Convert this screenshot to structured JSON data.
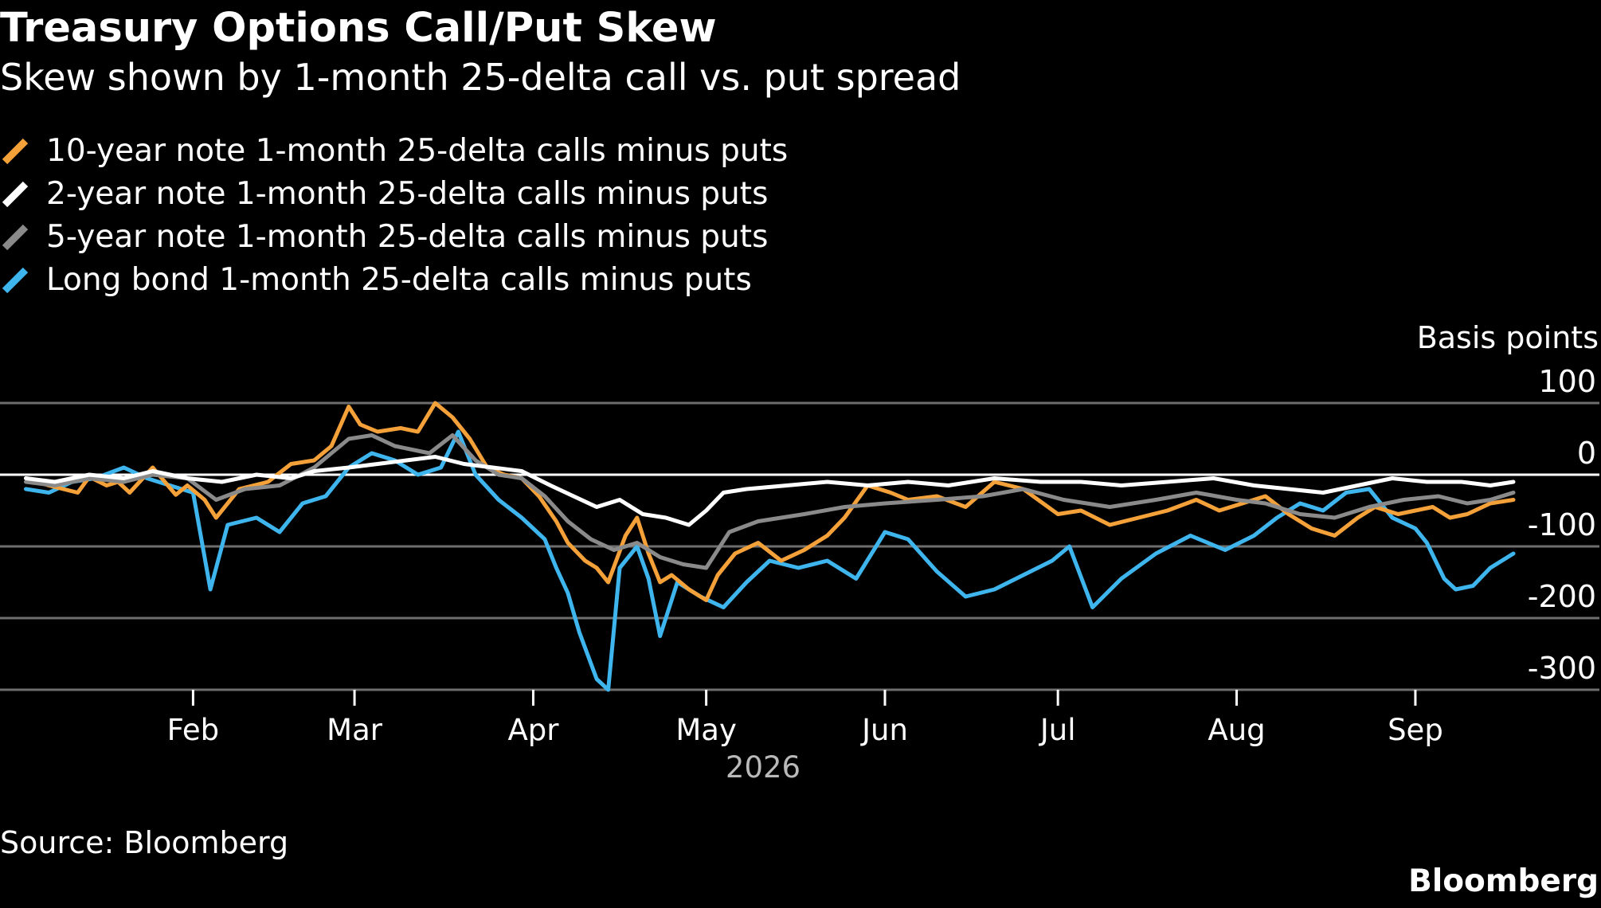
{
  "title": "Treasury Options Call/Put Skew",
  "subtitle": "Skew shown by 1-month 25-delta call vs. put spread",
  "unit_label": "Basis points",
  "source": "Source: Bloomberg",
  "brand": "Bloomberg",
  "colors": {
    "background": "#000000",
    "grid": "#6e6e6e",
    "zero_line": "#ffffff",
    "text": "#ffffff",
    "year_text": "#b9b9b9"
  },
  "chart_data": {
    "type": "line",
    "title": "Treasury Options Call/Put Skew",
    "subtitle": "Skew shown by 1-month 25-delta call vs. put spread",
    "ylabel": "Basis points",
    "ylim": [
      -300,
      100
    ],
    "yticks": [
      100,
      0,
      -100,
      -200,
      -300
    ],
    "ytick_labels": [
      "100",
      "0",
      "-100",
      "-200",
      "-300"
    ],
    "xlim": [
      "2026-01-01",
      "2026-09-18"
    ],
    "xticks": [
      {
        "date": "2026-02-01",
        "label": "Feb"
      },
      {
        "date": "2026-03-01",
        "label": "Mar"
      },
      {
        "date": "2026-04-01",
        "label": "Apr"
      },
      {
        "date": "2026-05-01",
        "label": "May"
      },
      {
        "date": "2026-06-01",
        "label": "Jun"
      },
      {
        "date": "2026-07-01",
        "label": "Jul"
      },
      {
        "date": "2026-08-01",
        "label": "Aug"
      },
      {
        "date": "2026-09-01",
        "label": "Sep"
      }
    ],
    "year_label": "2026",
    "grid": true,
    "legend_position": "top-left",
    "series": [
      {
        "name": "10-year note 1-month 25-delta calls minus puts",
        "color": "#f5a13a",
        "points": [
          [
            "2026-01-03",
            -5
          ],
          [
            "2026-01-07",
            -15
          ],
          [
            "2026-01-12",
            -25
          ],
          [
            "2026-01-14",
            -3
          ],
          [
            "2026-01-17",
            -15
          ],
          [
            "2026-01-19",
            -10
          ],
          [
            "2026-01-21",
            -25
          ],
          [
            "2026-01-25",
            10
          ],
          [
            "2026-01-29",
            -28
          ],
          [
            "2026-01-31",
            -15
          ],
          [
            "2026-02-03",
            -35
          ],
          [
            "2026-02-05",
            -60
          ],
          [
            "2026-02-09",
            -20
          ],
          [
            "2026-02-14",
            -10
          ],
          [
            "2026-02-18",
            15
          ],
          [
            "2026-02-22",
            20
          ],
          [
            "2026-02-25",
            40
          ],
          [
            "2026-02-28",
            95
          ],
          [
            "2026-03-02",
            70
          ],
          [
            "2026-03-05",
            60
          ],
          [
            "2026-03-09",
            65
          ],
          [
            "2026-03-12",
            60
          ],
          [
            "2026-03-15",
            100
          ],
          [
            "2026-03-18",
            80
          ],
          [
            "2026-03-21",
            50
          ],
          [
            "2026-03-24",
            10
          ],
          [
            "2026-03-27",
            0
          ],
          [
            "2026-03-30",
            -5
          ],
          [
            "2026-04-02",
            -30
          ],
          [
            "2026-04-05",
            -65
          ],
          [
            "2026-04-07",
            -95
          ],
          [
            "2026-04-10",
            -120
          ],
          [
            "2026-04-12",
            -130
          ],
          [
            "2026-04-14",
            -150
          ],
          [
            "2026-04-17",
            -85
          ],
          [
            "2026-04-19",
            -60
          ],
          [
            "2026-04-21",
            -110
          ],
          [
            "2026-04-23",
            -150
          ],
          [
            "2026-04-25",
            -140
          ],
          [
            "2026-04-28",
            -160
          ],
          [
            "2026-05-01",
            -175
          ],
          [
            "2026-05-03",
            -140
          ],
          [
            "2026-05-06",
            -110
          ],
          [
            "2026-05-10",
            -95
          ],
          [
            "2026-05-14",
            -120
          ],
          [
            "2026-05-18",
            -105
          ],
          [
            "2026-05-22",
            -85
          ],
          [
            "2026-05-25",
            -60
          ],
          [
            "2026-05-29",
            -15
          ],
          [
            "2026-06-02",
            -25
          ],
          [
            "2026-06-05",
            -35
          ],
          [
            "2026-06-10",
            -30
          ],
          [
            "2026-06-15",
            -45
          ],
          [
            "2026-06-20",
            -10
          ],
          [
            "2026-06-25",
            -20
          ],
          [
            "2026-07-01",
            -55
          ],
          [
            "2026-07-05",
            -50
          ],
          [
            "2026-07-10",
            -70
          ],
          [
            "2026-07-15",
            -60
          ],
          [
            "2026-07-20",
            -50
          ],
          [
            "2026-07-25",
            -35
          ],
          [
            "2026-07-29",
            -50
          ],
          [
            "2026-08-02",
            -40
          ],
          [
            "2026-08-06",
            -30
          ],
          [
            "2026-08-10",
            -55
          ],
          [
            "2026-08-14",
            -75
          ],
          [
            "2026-08-18",
            -85
          ],
          [
            "2026-08-22",
            -60
          ],
          [
            "2026-08-25",
            -45
          ],
          [
            "2026-08-29",
            -55
          ],
          [
            "2026-09-01",
            -50
          ],
          [
            "2026-09-04",
            -45
          ],
          [
            "2026-09-07",
            -60
          ],
          [
            "2026-09-10",
            -55
          ],
          [
            "2026-09-14",
            -40
          ],
          [
            "2026-09-18",
            -35
          ]
        ]
      },
      {
        "name": "2-year note 1-month 25-delta calls minus puts",
        "color": "#ffffff",
        "points": [
          [
            "2026-01-03",
            -5
          ],
          [
            "2026-01-08",
            -10
          ],
          [
            "2026-01-14",
            0
          ],
          [
            "2026-01-20",
            -5
          ],
          [
            "2026-01-25",
            5
          ],
          [
            "2026-01-31",
            -5
          ],
          [
            "2026-02-06",
            -10
          ],
          [
            "2026-02-12",
            0
          ],
          [
            "2026-02-18",
            -5
          ],
          [
            "2026-02-22",
            5
          ],
          [
            "2026-02-28",
            10
          ],
          [
            "2026-03-05",
            15
          ],
          [
            "2026-03-10",
            20
          ],
          [
            "2026-03-15",
            25
          ],
          [
            "2026-03-20",
            15
          ],
          [
            "2026-03-25",
            10
          ],
          [
            "2026-03-30",
            5
          ],
          [
            "2026-04-04",
            -15
          ],
          [
            "2026-04-08",
            -30
          ],
          [
            "2026-04-12",
            -45
          ],
          [
            "2026-04-16",
            -35
          ],
          [
            "2026-04-20",
            -55
          ],
          [
            "2026-04-24",
            -60
          ],
          [
            "2026-04-28",
            -70
          ],
          [
            "2026-05-01",
            -50
          ],
          [
            "2026-05-04",
            -25
          ],
          [
            "2026-05-08",
            -20
          ],
          [
            "2026-05-15",
            -15
          ],
          [
            "2026-05-22",
            -10
          ],
          [
            "2026-05-29",
            -15
          ],
          [
            "2026-06-05",
            -10
          ],
          [
            "2026-06-12",
            -15
          ],
          [
            "2026-06-20",
            -5
          ],
          [
            "2026-06-28",
            -10
          ],
          [
            "2026-07-05",
            -10
          ],
          [
            "2026-07-12",
            -15
          ],
          [
            "2026-07-20",
            -10
          ],
          [
            "2026-07-28",
            -5
          ],
          [
            "2026-08-04",
            -15
          ],
          [
            "2026-08-10",
            -20
          ],
          [
            "2026-08-16",
            -25
          ],
          [
            "2026-08-22",
            -15
          ],
          [
            "2026-08-28",
            -5
          ],
          [
            "2026-09-03",
            -10
          ],
          [
            "2026-09-09",
            -10
          ],
          [
            "2026-09-14",
            -15
          ],
          [
            "2026-09-18",
            -10
          ]
        ]
      },
      {
        "name": "5-year note 1-month 25-delta calls minus puts",
        "color": "#8a8a8a",
        "points": [
          [
            "2026-01-03",
            -10
          ],
          [
            "2026-01-08",
            -15
          ],
          [
            "2026-01-14",
            -5
          ],
          [
            "2026-01-20",
            -10
          ],
          [
            "2026-01-25",
            0
          ],
          [
            "2026-01-31",
            -5
          ],
          [
            "2026-02-05",
            -35
          ],
          [
            "2026-02-10",
            -20
          ],
          [
            "2026-02-16",
            -15
          ],
          [
            "2026-02-22",
            10
          ],
          [
            "2026-02-28",
            50
          ],
          [
            "2026-03-04",
            55
          ],
          [
            "2026-03-08",
            40
          ],
          [
            "2026-03-14",
            30
          ],
          [
            "2026-03-18",
            55
          ],
          [
            "2026-03-22",
            20
          ],
          [
            "2026-03-26",
            0
          ],
          [
            "2026-03-30",
            -5
          ],
          [
            "2026-04-03",
            -30
          ],
          [
            "2026-04-07",
            -65
          ],
          [
            "2026-04-11",
            -90
          ],
          [
            "2026-04-15",
            -105
          ],
          [
            "2026-04-19",
            -95
          ],
          [
            "2026-04-23",
            -115
          ],
          [
            "2026-04-27",
            -125
          ],
          [
            "2026-05-01",
            -130
          ],
          [
            "2026-05-05",
            -80
          ],
          [
            "2026-05-10",
            -65
          ],
          [
            "2026-05-18",
            -55
          ],
          [
            "2026-05-25",
            -45
          ],
          [
            "2026-06-01",
            -40
          ],
          [
            "2026-06-10",
            -35
          ],
          [
            "2026-06-18",
            -30
          ],
          [
            "2026-06-25",
            -20
          ],
          [
            "2026-07-02",
            -35
          ],
          [
            "2026-07-10",
            -45
          ],
          [
            "2026-07-18",
            -35
          ],
          [
            "2026-07-25",
            -25
          ],
          [
            "2026-08-01",
            -35
          ],
          [
            "2026-08-06",
            -40
          ],
          [
            "2026-08-12",
            -55
          ],
          [
            "2026-08-18",
            -60
          ],
          [
            "2026-08-24",
            -45
          ],
          [
            "2026-08-30",
            -35
          ],
          [
            "2026-09-05",
            -30
          ],
          [
            "2026-09-10",
            -40
          ],
          [
            "2026-09-14",
            -35
          ],
          [
            "2026-09-18",
            -25
          ]
        ]
      },
      {
        "name": "Long bond 1-month 25-delta calls minus puts",
        "color": "#3fb5ee",
        "points": [
          [
            "2026-01-03",
            -20
          ],
          [
            "2026-01-07",
            -25
          ],
          [
            "2026-01-11",
            -10
          ],
          [
            "2026-01-15",
            -5
          ],
          [
            "2026-01-20",
            10
          ],
          [
            "2026-01-24",
            -5
          ],
          [
            "2026-01-28",
            -15
          ],
          [
            "2026-02-01",
            -25
          ],
          [
            "2026-02-04",
            -160
          ],
          [
            "2026-02-07",
            -70
          ],
          [
            "2026-02-12",
            -60
          ],
          [
            "2026-02-16",
            -80
          ],
          [
            "2026-02-20",
            -40
          ],
          [
            "2026-02-24",
            -30
          ],
          [
            "2026-02-28",
            10
          ],
          [
            "2026-03-04",
            30
          ],
          [
            "2026-03-08",
            20
          ],
          [
            "2026-03-12",
            0
          ],
          [
            "2026-03-16",
            10
          ],
          [
            "2026-03-19",
            60
          ],
          [
            "2026-03-22",
            0
          ],
          [
            "2026-03-26",
            -35
          ],
          [
            "2026-03-30",
            -60
          ],
          [
            "2026-04-03",
            -90
          ],
          [
            "2026-04-05",
            -130
          ],
          [
            "2026-04-07",
            -165
          ],
          [
            "2026-04-09",
            -220
          ],
          [
            "2026-04-12",
            -285
          ],
          [
            "2026-04-14",
            -300
          ],
          [
            "2026-04-16",
            -130
          ],
          [
            "2026-04-19",
            -100
          ],
          [
            "2026-04-21",
            -145
          ],
          [
            "2026-04-23",
            -225
          ],
          [
            "2026-04-26",
            -150
          ],
          [
            "2026-04-30",
            -170
          ],
          [
            "2026-05-04",
            -185
          ],
          [
            "2026-05-08",
            -150
          ],
          [
            "2026-05-12",
            -120
          ],
          [
            "2026-05-17",
            -130
          ],
          [
            "2026-05-22",
            -120
          ],
          [
            "2026-05-27",
            -145
          ],
          [
            "2026-06-01",
            -80
          ],
          [
            "2026-06-05",
            -90
          ],
          [
            "2026-06-10",
            -135
          ],
          [
            "2026-06-15",
            -170
          ],
          [
            "2026-06-20",
            -160
          ],
          [
            "2026-06-25",
            -140
          ],
          [
            "2026-06-30",
            -120
          ],
          [
            "2026-07-03",
            -100
          ],
          [
            "2026-07-07",
            -185
          ],
          [
            "2026-07-12",
            -145
          ],
          [
            "2026-07-18",
            -110
          ],
          [
            "2026-07-24",
            -85
          ],
          [
            "2026-07-30",
            -105
          ],
          [
            "2026-08-04",
            -85
          ],
          [
            "2026-08-08",
            -60
          ],
          [
            "2026-08-12",
            -40
          ],
          [
            "2026-08-16",
            -50
          ],
          [
            "2026-08-20",
            -25
          ],
          [
            "2026-08-24",
            -20
          ],
          [
            "2026-08-28",
            -60
          ],
          [
            "2026-09-01",
            -75
          ],
          [
            "2026-09-03",
            -95
          ],
          [
            "2026-09-06",
            -145
          ],
          [
            "2026-09-08",
            -160
          ],
          [
            "2026-09-11",
            -155
          ],
          [
            "2026-09-14",
            -130
          ],
          [
            "2026-09-18",
            -110
          ]
        ]
      }
    ]
  }
}
